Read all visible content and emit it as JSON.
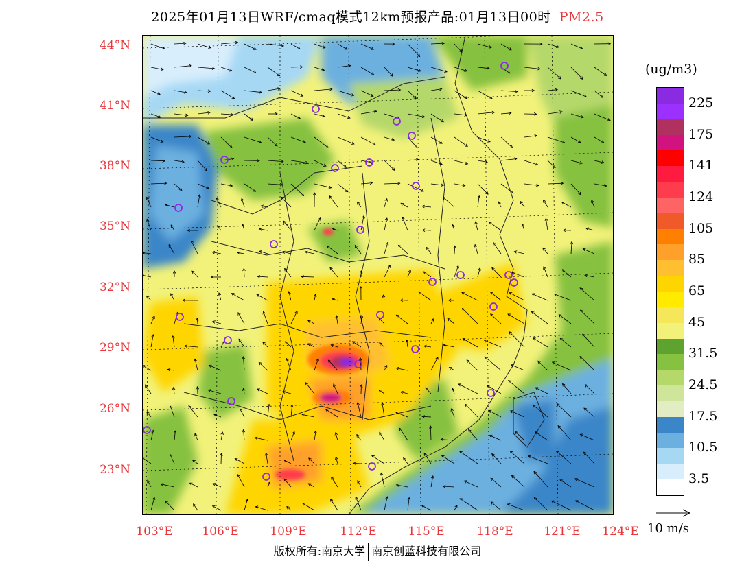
{
  "title": {
    "main": "2025年01月13日WRF/cmaq模式12km预报产品:01月13日00时",
    "species": "PM2.5",
    "species_color": "#e8363a"
  },
  "map": {
    "lat_labels": [
      "44°N",
      "41°N",
      "38°N",
      "35°N",
      "32°N",
      "29°N",
      "26°N",
      "23°N"
    ],
    "lon_labels": [
      "103°E",
      "106°E",
      "109°E",
      "112°E",
      "115°E",
      "118°E",
      "121°E",
      "124°E"
    ],
    "label_color": "#e8363a",
    "background_field": "PM2.5 concentration with 10 m wind vectors",
    "hotspots_description": "highest concentrations (175–225+) over central Hunan/Hubei region near 112°E 28°N"
  },
  "legend": {
    "unit": "(ug/m3)",
    "levels": [
      {
        "label": "225",
        "color": "#8a2be2"
      },
      {
        "label": "",
        "color": "#9b30ff"
      },
      {
        "label": "175",
        "color": "#b03060"
      },
      {
        "label": "",
        "color": "#d2127e"
      },
      {
        "label": "141",
        "color": "#ff0000"
      },
      {
        "label": "",
        "color": "#ff1a40"
      },
      {
        "label": "124",
        "color": "#ff3c4e"
      },
      {
        "label": "",
        "color": "#ff6464"
      },
      {
        "label": "105",
        "color": "#f05a28"
      },
      {
        "label": "",
        "color": "#ff7f00"
      },
      {
        "label": "85",
        "color": "#ffa02a"
      },
      {
        "label": "",
        "color": "#ffbf30"
      },
      {
        "label": "65",
        "color": "#ffd500"
      },
      {
        "label": "",
        "color": "#ffea00"
      },
      {
        "label": "45",
        "color": "#f6e65a"
      },
      {
        "label": "",
        "color": "#f2f27a"
      },
      {
        "label": "31.5",
        "color": "#5ea32f"
      },
      {
        "label": "",
        "color": "#86c13f"
      },
      {
        "label": "24.5",
        "color": "#b5d86a"
      },
      {
        "label": "",
        "color": "#cfe59a"
      },
      {
        "label": "17.5",
        "color": "#e2edc4"
      },
      {
        "label": "",
        "color": "#3a86c8"
      },
      {
        "label": "10.5",
        "color": "#6cb0e0"
      },
      {
        "label": "",
        "color": "#a6d8f4"
      },
      {
        "label": "3.5",
        "color": "#d8eefc"
      },
      {
        "label": "",
        "color": "#ffffff"
      }
    ]
  },
  "wind_key": {
    "label": "10 m/s"
  },
  "footer": {
    "copyright": "版权所有:南京大学",
    "company": "南京创蓝科技有限公司"
  }
}
